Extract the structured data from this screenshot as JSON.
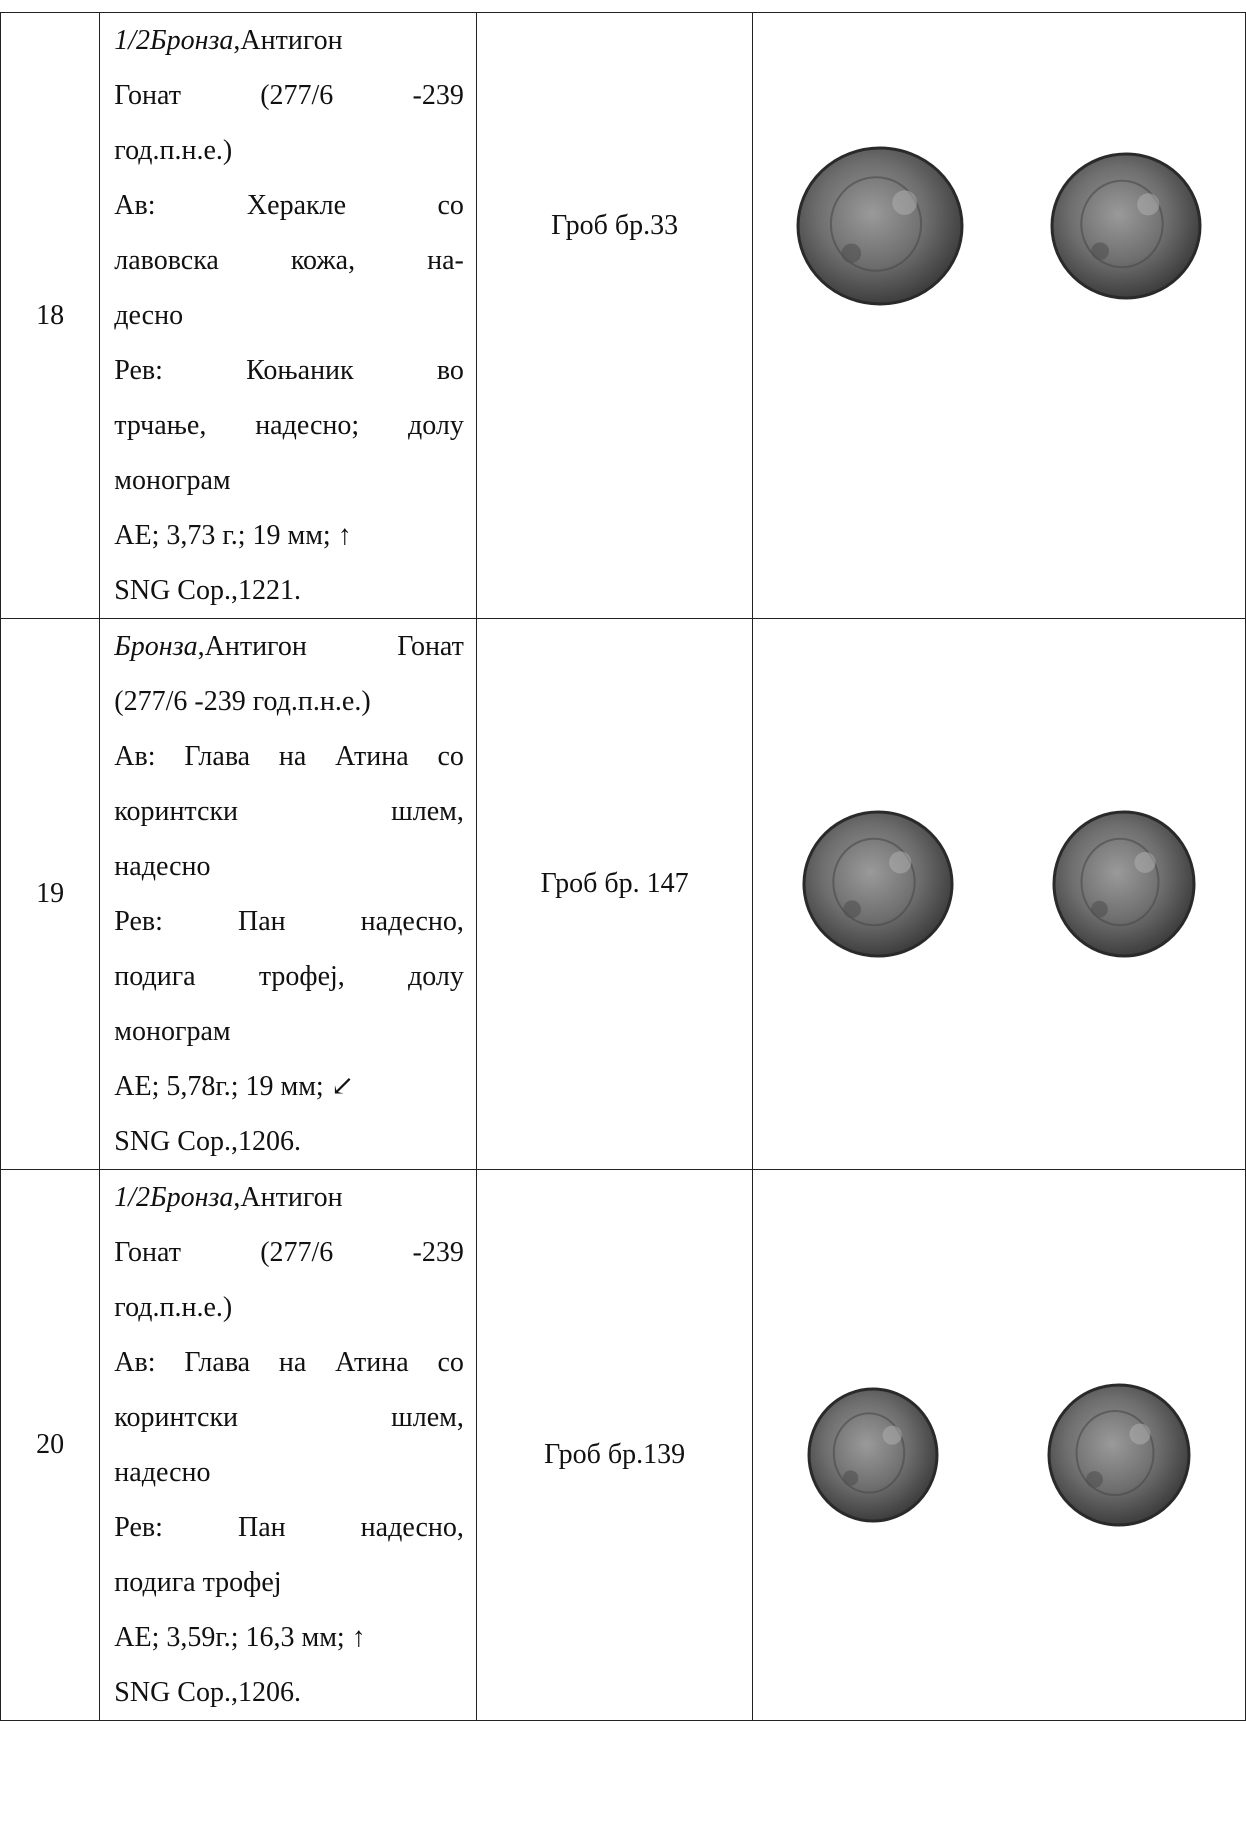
{
  "rows": [
    {
      "number": "18",
      "desc": {
        "lines": [
          {
            "italic": "1/2Бронза",
            "text": ",Антигон",
            "last": true
          },
          {
            "text": "Гонат   (277/6   -239"
          },
          {
            "text": "год.п.н.е.)",
            "last": true
          },
          {
            "text": "Ав:   Херакле   со"
          },
          {
            "text": "лавовска  кожа,  на-"
          },
          {
            "text": "десно",
            "last": true
          },
          {
            "text": "Рев:  Коњаник  во"
          },
          {
            "text": "трчање, надесно; долу"
          },
          {
            "text": "монограм",
            "last": true
          },
          {
            "text": "АЕ; 3,73 г.; 19 мм; ↑",
            "last": true
          },
          {
            "text": "SNG Cop.,1221.",
            "last": true
          }
        ]
      },
      "location": "Гроб бр.33",
      "coins": [
        {
          "obverse": "Херакле со лавовска кожа, надесно"
        },
        {
          "reverse": "Коњаник во трчање, надесно; долу монограм"
        }
      ]
    },
    {
      "number": "19",
      "desc": {
        "lines": [
          {
            "italic": "Бронза",
            "text": ",Антигон  Гонат"
          },
          {
            "text": "(277/6  -239 год.п.н.е.)",
            "last": true
          },
          {
            "text": "Ав: Глава на Атина со"
          },
          {
            "text": "коринтски    шлем,"
          },
          {
            "text": "надесно",
            "last": true
          },
          {
            "text": "Рев:   Пан  надесно,"
          },
          {
            "text": "подига  трофеј,  долу"
          },
          {
            "text": "монограм",
            "last": true
          },
          {
            "text": "АЕ; 5,78г.; 19 мм; ↙",
            "last": true
          },
          {
            "text": "SNG Cop.,1206.",
            "last": true
          }
        ]
      },
      "location": "Гроб бр. 147",
      "coins": [
        {
          "obverse": "Глава на Атина со коринтски шлем, надесно"
        },
        {
          "reverse": "Пан надесно, подига трофеј, долу монограм"
        }
      ]
    },
    {
      "number": "20",
      "desc": {
        "lines": [
          {
            "italic": "1/2Бронза",
            "text": ",Антигон",
            "last": true
          },
          {
            "text": "Гонат   (277/6   -239"
          },
          {
            "text": "год.п.н.е.)",
            "last": true
          },
          {
            "text": "Ав: Глава на Атина со"
          },
          {
            "text": "коринтски    шлем,"
          },
          {
            "text": "надесно",
            "last": true
          },
          {
            "text": "Рев:   Пан  надесно,"
          },
          {
            "text": "подига трофеј",
            "last": true
          },
          {
            "text": "АЕ; 3,59г.; 16,3 мм; ↑",
            "last": true
          },
          {
            "text": "SNG Cop.,1206.",
            "last": true
          }
        ]
      },
      "location": "Гроб бр.139",
      "coins": [
        {
          "obverse": "Глава на Атина со коринтски шлем, надесно"
        },
        {
          "reverse": "Пан надесно, подига трофеј"
        }
      ]
    }
  ],
  "colors": {
    "coin_dark": "#3a3a3a",
    "coin_mid": "#6e6e6e",
    "coin_light": "#9a9a9a",
    "border": "#222222"
  }
}
